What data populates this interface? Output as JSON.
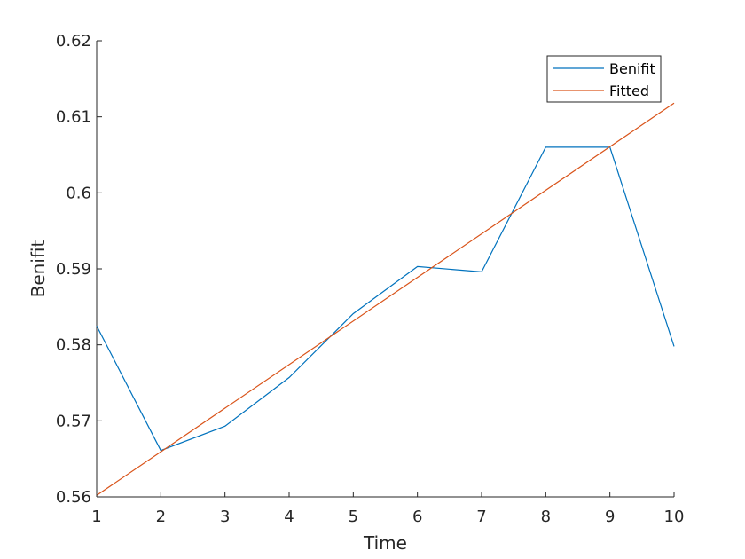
{
  "chart_data": {
    "type": "line",
    "xlabel": "Time",
    "ylabel": "Benifit",
    "xlim": [
      1,
      10
    ],
    "ylim": [
      0.56,
      0.62
    ],
    "x_ticks": [
      1,
      2,
      3,
      4,
      5,
      6,
      7,
      8,
      9,
      10
    ],
    "y_ticks": [
      0.56,
      0.57,
      0.58,
      0.59,
      0.6,
      0.61,
      0.62
    ],
    "x_tick_labels": [
      "1",
      "2",
      "3",
      "4",
      "5",
      "6",
      "7",
      "8",
      "9",
      "10"
    ],
    "y_tick_labels": [
      "0.56",
      "0.57",
      "0.58",
      "0.59",
      "0.6",
      "0.61",
      "0.62"
    ],
    "grid": false,
    "legend_position": "top-right",
    "series": [
      {
        "name": "Benifit",
        "color": "#0072BD",
        "x": [
          1,
          2,
          3,
          4,
          5,
          6,
          7,
          8,
          9,
          10
        ],
        "y": [
          0.5825,
          0.5661,
          0.5693,
          0.5757,
          0.5841,
          0.5903,
          0.5896,
          0.606,
          0.606,
          0.5798
        ]
      },
      {
        "name": "Fitted",
        "color": "#D95319",
        "x": [
          1,
          10
        ],
        "y": [
          0.5602,
          0.6118
        ]
      }
    ]
  }
}
